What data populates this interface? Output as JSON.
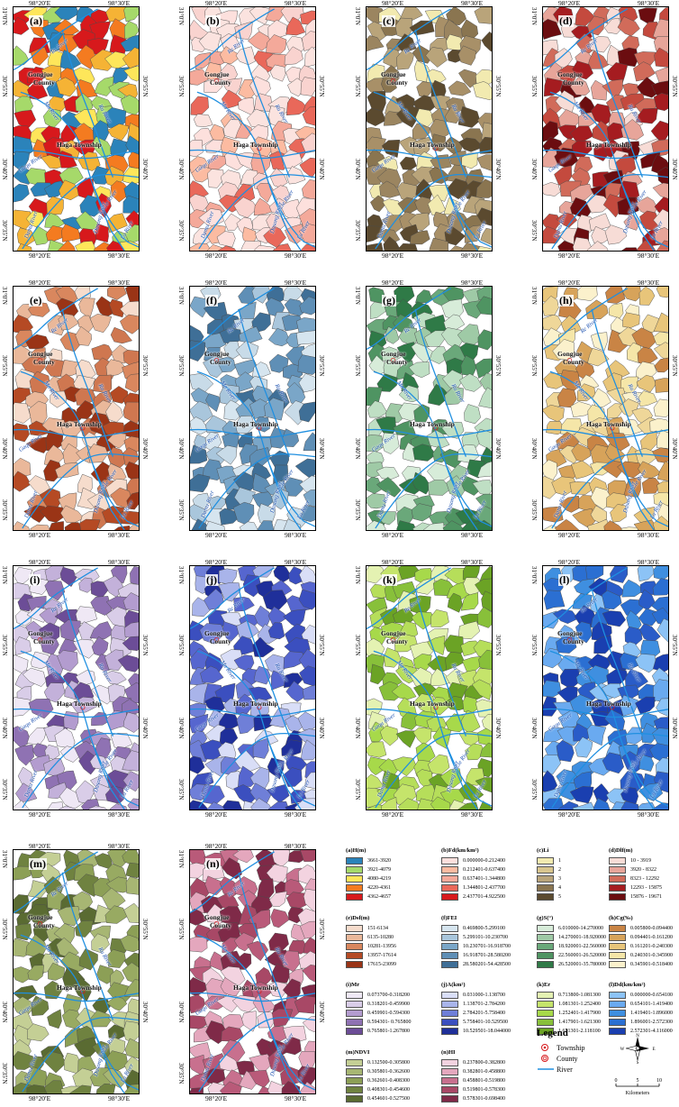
{
  "coords": {
    "lon_left": "98°20′E",
    "lon_right": "98°30′E",
    "lat_top": "31°0′N",
    "lat_mid1": "30°55′N",
    "lat_mid2": "30°40′N",
    "lat_bottom": "30°35′N"
  },
  "place_labels": {
    "county": "Gongjue County",
    "county_line1": "Gongjue",
    "county_line2": "County",
    "township": "Haga Township"
  },
  "rivers": {
    "re": "Re River",
    "ma": "Ma River",
    "ru": "Ru River",
    "gaqu": "Gaqu River",
    "lie": "Lie River",
    "damu": "Damu River",
    "dasong": "Dasong River",
    "lu": "Lu River"
  },
  "panels": [
    {
      "label": "(a)",
      "colors": [
        "#d7191c",
        "#f47b20",
        "#fee65a",
        "#a6d96a",
        "#2b83ba",
        "#f5b335"
      ]
    },
    {
      "label": "(b)",
      "colors": [
        "#fde0dd",
        "#fcbba1",
        "#f4a99a",
        "#f9d3cf",
        "#e9685a",
        "#fbe3df"
      ]
    },
    {
      "label": "(c)",
      "colors": [
        "#a89068",
        "#8a7550",
        "#b9a47a",
        "#f2eab0",
        "#5b4a2f",
        "#9b8560"
      ]
    },
    {
      "label": "(d)",
      "colors": [
        "#a51c20",
        "#d16b5a",
        "#e7a59a",
        "#f7dcd6",
        "#6b0d10",
        "#c44a3e"
      ]
    },
    {
      "label": "(e)",
      "colors": [
        "#d9875e",
        "#b54a24",
        "#eab89a",
        "#f6dccc",
        "#9a3416",
        "#cf7750"
      ]
    },
    {
      "label": "(f)",
      "colors": [
        "#7aa6c8",
        "#a9c6dc",
        "#d6e5ef",
        "#3f6f97",
        "#5f8fb6",
        "#c8dbe8"
      ]
    },
    {
      "label": "(g)",
      "colors": [
        "#6aa87a",
        "#9fcaa6",
        "#d7ecd9",
        "#2f7a47",
        "#4f9462",
        "#bfdfc4"
      ]
    },
    {
      "label": "(h)",
      "colors": [
        "#f5e6a8",
        "#e8c57a",
        "#d7a35a",
        "#fbf1cc",
        "#c98445",
        "#efd799"
      ]
    },
    {
      "label": "(i)",
      "colors": [
        "#d9cde8",
        "#b39ccf",
        "#8f72b3",
        "#efe8f5",
        "#6c4d97",
        "#c3b1da"
      ]
    },
    {
      "label": "(j)",
      "colors": [
        "#6f7fd8",
        "#3b4fbf",
        "#a9b4ea",
        "#1f2f9a",
        "#d9def7",
        "#5666cf"
      ]
    },
    {
      "label": "(k)",
      "colors": [
        "#a7d94a",
        "#c5e46b",
        "#88c03a",
        "#e4f2b2",
        "#6ba325",
        "#b6de5a"
      ]
    },
    {
      "label": "(l)",
      "colors": [
        "#3f8fe0",
        "#2b6fd2",
        "#6aaaf0",
        "#1a3fb0",
        "#8cc3f6",
        "#2a5cc8"
      ]
    },
    {
      "label": "(m)",
      "colors": [
        "#8c9f56",
        "#a7b673",
        "#6f8240",
        "#c4cf95",
        "#5a6b32",
        "#98aa62"
      ]
    },
    {
      "label": "(n)",
      "colors": [
        "#c8708e",
        "#a84866",
        "#e4a7bd",
        "#7f2a48",
        "#f3d3e0",
        "#b95a79"
      ]
    }
  ],
  "legends": [
    {
      "title": "(a)H(m)",
      "items": [
        {
          "text": "3661-3920",
          "color": "#2b83ba"
        },
        {
          "text": "3921-4079",
          "color": "#a6d96a"
        },
        {
          "text": "4080-4219",
          "color": "#fee65a"
        },
        {
          "text": "4220-4361",
          "color": "#f47b20"
        },
        {
          "text": "4362-4657",
          "color": "#d7191c"
        }
      ]
    },
    {
      "title": "(b)Fd(km/km²)",
      "items": [
        {
          "text": "0.000000-0.212400",
          "color": "#fde0dd"
        },
        {
          "text": "0.212401-0.637400",
          "color": "#fcbba1"
        },
        {
          "text": "0.637401-1.344800",
          "color": "#f4a99a"
        },
        {
          "text": "1.344801-2.437700",
          "color": "#e9685a"
        },
        {
          "text": "2.437701-4.922500",
          "color": "#d7191c"
        }
      ]
    },
    {
      "title": "(c)Li",
      "items": [
        {
          "text": "1",
          "color": "#f2eab0"
        },
        {
          "text": "2",
          "color": "#d8c58e"
        },
        {
          "text": "3",
          "color": "#b9a47a"
        },
        {
          "text": "4",
          "color": "#8a7550"
        },
        {
          "text": "5",
          "color": "#5b4a2f"
        }
      ]
    },
    {
      "title": "(d)Dlf(m)",
      "items": [
        {
          "text": "10 - 3919",
          "color": "#f7dcd6"
        },
        {
          "text": "3920 - 8322",
          "color": "#e7a59a"
        },
        {
          "text": "8323 - 12292",
          "color": "#d16b5a"
        },
        {
          "text": "12293 - 15875",
          "color": "#a51c20"
        },
        {
          "text": "15876 - 19671",
          "color": "#6b0d10"
        }
      ]
    },
    {
      "title": "(e)Dsf(m)",
      "items": [
        {
          "text": "151-6134",
          "color": "#f6dccc"
        },
        {
          "text": "6135-10280",
          "color": "#eab89a"
        },
        {
          "text": "10281-13956",
          "color": "#d9875e"
        },
        {
          "text": "13957-17614",
          "color": "#b54a24"
        },
        {
          "text": "17615-23099",
          "color": "#9a3416"
        }
      ]
    },
    {
      "title": "(f)FEI",
      "items": [
        {
          "text": "0.469800-5.299100",
          "color": "#d6e5ef"
        },
        {
          "text": "5.299101-10.230700",
          "color": "#a9c6dc"
        },
        {
          "text": "10.230701-16.918700",
          "color": "#7aa6c8"
        },
        {
          "text": "16.918701-28.580200",
          "color": "#5f8fb6"
        },
        {
          "text": "28.580201-54.428500",
          "color": "#3f6f97"
        }
      ]
    },
    {
      "title": "(g)S(°)",
      "items": [
        {
          "text": "6.010000-14.270000",
          "color": "#d7ecd9"
        },
        {
          "text": "14.270001-18.920000",
          "color": "#9fcaa6"
        },
        {
          "text": "18.920001-22.560000",
          "color": "#6aa87a"
        },
        {
          "text": "22.560001-26.520000",
          "color": "#4f9462"
        },
        {
          "text": "26.520001-35.780000",
          "color": "#2f7a47"
        }
      ]
    },
    {
      "title": "(h)Cg(‰)",
      "items": [
        {
          "text": "0.005800-0.094400",
          "color": "#c98445"
        },
        {
          "text": "0.094401-0.161200",
          "color": "#d7a35a"
        },
        {
          "text": "0.161201-0.240300",
          "color": "#e8c57a"
        },
        {
          "text": "0.240301-0.345900",
          "color": "#f5e6a8"
        },
        {
          "text": "0.345901-0.518400",
          "color": "#fbf1cc"
        }
      ]
    },
    {
      "title": "(i)Mr",
      "items": [
        {
          "text": "0.073700-0.318200",
          "color": "#efe8f5"
        },
        {
          "text": "0.318201-0.459900",
          "color": "#d9cde8"
        },
        {
          "text": "0.459901-0.594300",
          "color": "#b39ccf"
        },
        {
          "text": "0.594301- 0.765800",
          "color": "#8f72b3"
        },
        {
          "text": "0.765801-1.267800",
          "color": "#6c4d97"
        }
      ]
    },
    {
      "title": "(j)A(km²)",
      "items": [
        {
          "text": "0.031000-1.138700",
          "color": "#d9def7"
        },
        {
          "text": "1.138701-2.784200",
          "color": "#a9b4ea"
        },
        {
          "text": "2.784201-5.758400",
          "color": "#6f7fd8"
        },
        {
          "text": "5.758401-10.529500",
          "color": "#3b4fbf"
        },
        {
          "text": "10.529501-18.044000",
          "color": "#1f2f9a"
        }
      ]
    },
    {
      "title": "(k)Er",
      "items": [
        {
          "text": "0.713800-1.081300",
          "color": "#e4f2b2"
        },
        {
          "text": "1.081301-1.252400",
          "color": "#c5e46b"
        },
        {
          "text": "1.252401-1.417900",
          "color": "#a7d94a"
        },
        {
          "text": "1.417901-1.621300",
          "color": "#88c03a"
        },
        {
          "text": "1.621301-2.118100",
          "color": "#6ba325"
        }
      ]
    },
    {
      "title": "(l)Dd(km/km²)",
      "items": [
        {
          "text": "0.000000-0.654100",
          "color": "#8cc3f6"
        },
        {
          "text": "0.654101-1.419400",
          "color": "#6aaaf0"
        },
        {
          "text": "1.419401-1.896000",
          "color": "#3f8fe0"
        },
        {
          "text": "1.896001-2.572300",
          "color": "#2b6fd2"
        },
        {
          "text": "2.572301-4.116000",
          "color": "#1a3fb0"
        }
      ]
    },
    {
      "title": "(m)NDVI",
      "items": [
        {
          "text": "0.132500-0.305800",
          "color": "#c4cf95"
        },
        {
          "text": "0.305801-0.362600",
          "color": "#a7b673"
        },
        {
          "text": "0.362601-0.408300",
          "color": "#8c9f56"
        },
        {
          "text": "0.408301-0.454600",
          "color": "#6f8240"
        },
        {
          "text": "0.454601-0.527500",
          "color": "#5a6b32"
        }
      ]
    },
    {
      "title": "(n)HI",
      "items": [
        {
          "text": "0.237800-0.382800",
          "color": "#f3d3e0"
        },
        {
          "text": "0.382801-0.458800",
          "color": "#e4a7bd"
        },
        {
          "text": "0.458801-0.519800",
          "color": "#c8708e"
        },
        {
          "text": "0.519801-0.578300",
          "color": "#a84866"
        },
        {
          "text": "0.578301-0.698400",
          "color": "#7f2a48"
        }
      ]
    }
  ],
  "main_legend": {
    "title": "Legend",
    "township": "Township",
    "county": "County",
    "river": "River",
    "river_color": "#1f8fe0",
    "north": "N",
    "south": "S",
    "east": "E",
    "west": "W",
    "scale_0": "0",
    "scale_5": "5",
    "scale_10": "10",
    "scale_unit": "Kilometers"
  }
}
